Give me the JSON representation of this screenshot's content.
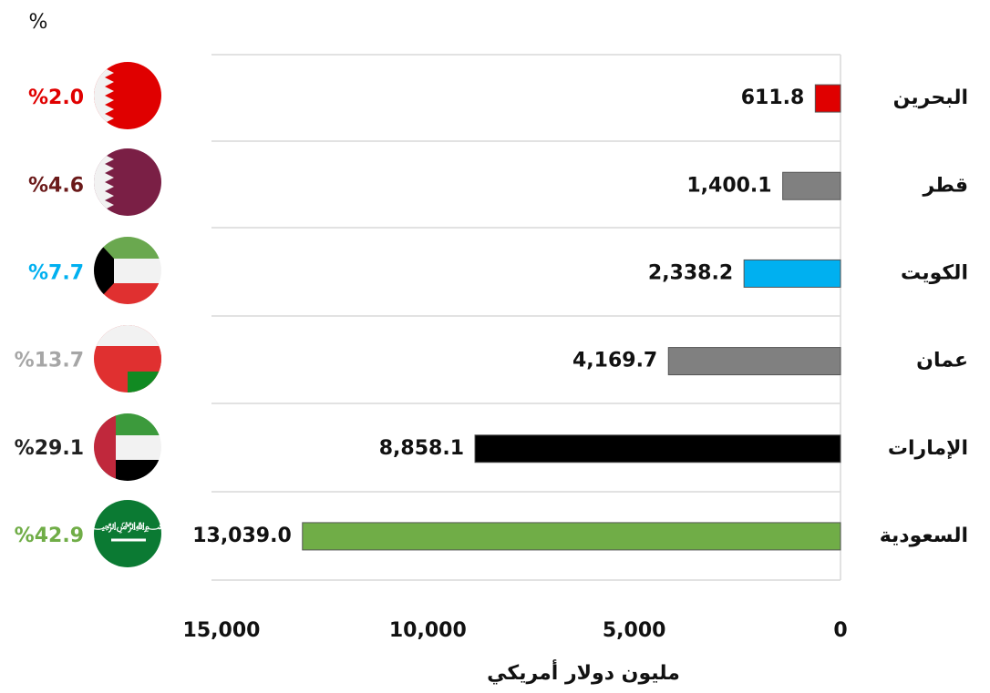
{
  "chart_data": {
    "type": "bar",
    "orientation": "horizontal",
    "x_reversed": true,
    "categories": [
      "البحرين",
      "قطر",
      "الكويت",
      "عمان",
      "الإمارات",
      "السعودية"
    ],
    "values": [
      611.8,
      1400.1,
      2338.2,
      4169.7,
      8858.1,
      13039.0
    ],
    "value_labels": [
      "611.8",
      "1,400.1",
      "2,338.2",
      "4,169.7",
      "8,858.1",
      "13,039.0"
    ],
    "colors": [
      "#e00000",
      "#808080",
      "#00b0f0",
      "#808080",
      "#000000",
      "#70ad47"
    ],
    "xlabel": "مليون دولار أمريكي",
    "xlim": [
      0,
      15000
    ],
    "xticks": [
      0,
      {
        "value": 5000,
        "label": "5,000"
      },
      {
        "value": 10000,
        "label": "10,000"
      },
      {
        "value": 15000,
        "label": "15,000"
      }
    ],
    "shares": {
      "title": "%",
      "values": [
        2.0,
        4.6,
        7.7,
        13.7,
        29.1,
        42.9
      ],
      "value_labels": [
        "%2.0",
        "%4.6",
        "%7.7",
        "%13.7",
        "%29.1",
        "%42.9"
      ],
      "colors": [
        "#e00000",
        "#6b1a1a",
        "#00b0f0",
        "#a6a6a6",
        "#222222",
        "#70ad47"
      ]
    }
  }
}
